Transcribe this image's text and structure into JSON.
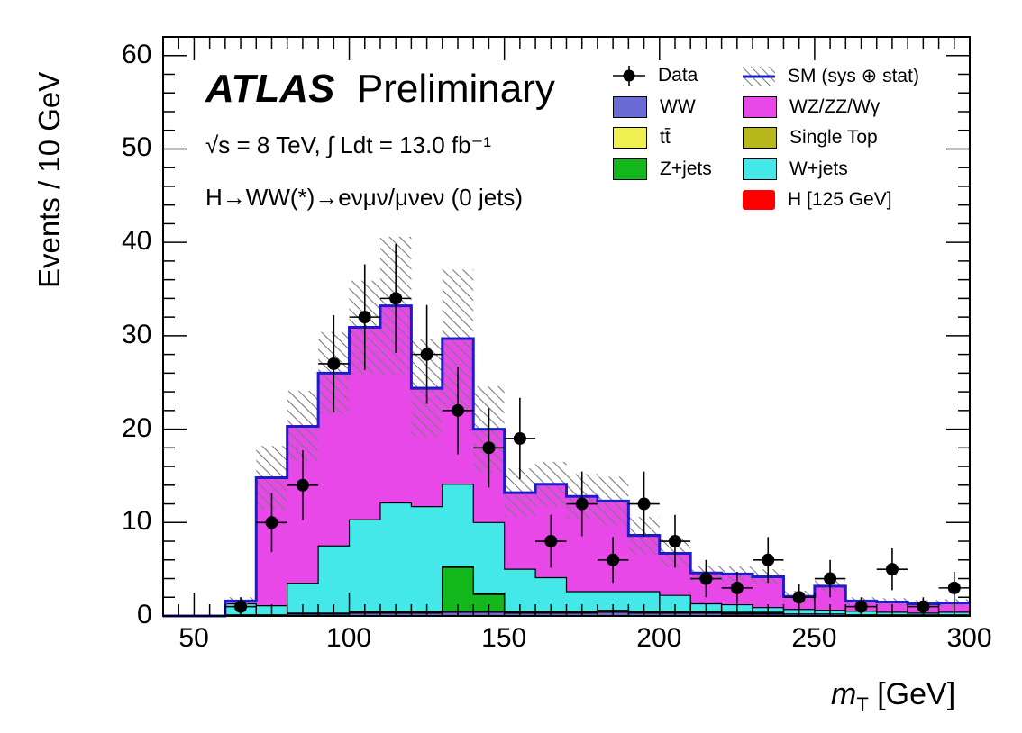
{
  "chart_data": {
    "type": "stacked-histogram",
    "title": "ATLAS Preliminary",
    "experiment": "ATLAS",
    "status": "Preliminary",
    "info_line1": "√s = 8 TeV, ∫ Ldt = 13.0 fb⁻¹",
    "info_line2": "H→WW(*)→eνμν/μνeν (0 jets)",
    "xlabel_var": "m",
    "xlabel_sub": "T",
    "xlabel_unit": "[GeV]",
    "ylabel": "Events / 10 GeV",
    "xlim": [
      40,
      300
    ],
    "ylim": [
      0,
      62
    ],
    "x_ticks": [
      50,
      100,
      150,
      200,
      250,
      300
    ],
    "y_ticks": [
      0,
      10,
      20,
      30,
      40,
      50,
      60
    ],
    "bin_edges": [
      40,
      50,
      60,
      70,
      80,
      90,
      100,
      110,
      120,
      130,
      140,
      150,
      160,
      170,
      180,
      190,
      200,
      210,
      220,
      230,
      240,
      250,
      260,
      270,
      280,
      290,
      300
    ],
    "series": [
      {
        "name": "WW",
        "color": "#6b6bd6",
        "values": [
          0,
          0,
          0.1,
          0.1,
          0.2,
          0.2,
          0.3,
          0.3,
          0.3,
          0.4,
          0.4,
          0.3,
          0.3,
          0.3,
          0.4,
          0.3,
          0.3,
          0.3,
          0.2,
          0.2,
          0.2,
          0.2,
          0.1,
          0.1,
          0.1,
          0.1
        ]
      },
      {
        "name": "tt̄",
        "color": "#f0f050",
        "values": [
          0,
          0,
          0,
          0,
          0,
          0,
          0.1,
          0.1,
          0.1,
          0.1,
          0.1,
          0.1,
          0.1,
          0.1,
          0.1,
          0.1,
          0.1,
          0.1,
          0.1,
          0.1,
          0,
          0,
          0,
          0,
          0,
          0
        ]
      },
      {
        "name": "Z+jets",
        "color": "#12b81c",
        "values": [
          0,
          0,
          0,
          0,
          0,
          0,
          0,
          0,
          0,
          4.7,
          1.8,
          0,
          0,
          0,
          0,
          0,
          0,
          0,
          0,
          0,
          0,
          0,
          0,
          0,
          0,
          0
        ]
      },
      {
        "name": "Single Top",
        "color": "#b8b81c",
        "values": [
          0,
          0,
          0,
          0,
          0.1,
          0.1,
          0.1,
          0.1,
          0.1,
          0.1,
          0.1,
          0.1,
          0.1,
          0.1,
          0.1,
          0.1,
          0.1,
          0.1,
          0.1,
          0.1,
          0,
          0,
          0,
          0,
          0,
          0
        ]
      },
      {
        "name": "W+jets",
        "color": "#44e8e8",
        "values": [
          0,
          0,
          1.2,
          1.0,
          3.2,
          7.2,
          9.8,
          11.6,
          11.2,
          8.8,
          7.6,
          4.5,
          3.6,
          2.1,
          2.0,
          2.1,
          1.7,
          0.8,
          0.8,
          0.5,
          0.5,
          0.4,
          0.4,
          0.3,
          0.2,
          0.3
        ]
      },
      {
        "name": "WZ/ZZ/Wγ",
        "color": "#e848e8",
        "values": [
          0,
          0,
          0.3,
          13.7,
          16.8,
          18.5,
          20.6,
          21.1,
          12.6,
          15.6,
          10.0,
          8.2,
          10.0,
          10.2,
          9.7,
          6.1,
          4.5,
          3.3,
          3.3,
          3.3,
          1.4,
          2.6,
          1.1,
          1.1,
          1.0,
          1.0
        ]
      },
      {
        "name": "H [125 GeV]",
        "color": "#ff0000",
        "values": [
          0,
          0,
          0,
          0,
          0,
          0,
          0,
          0,
          0,
          0,
          0,
          0,
          0,
          0,
          0,
          0,
          0,
          0,
          0,
          0,
          0,
          0,
          0,
          0,
          0,
          0
        ]
      }
    ],
    "sm_total": {
      "name": "SM (sys ⊕ stat)",
      "line_color": "#1c1ccc",
      "values": [
        0,
        0,
        1.6,
        14.8,
        20.3,
        26.0,
        30.9,
        33.2,
        24.4,
        29.7,
        20.0,
        13.2,
        14.1,
        12.8,
        12.3,
        8.6,
        6.7,
        4.6,
        4.5,
        4.2,
        2.1,
        3.2,
        1.6,
        1.5,
        1.3,
        1.4
      ],
      "band": [
        0,
        0,
        0.4,
        3.4,
        3.8,
        4.4,
        5.0,
        7.4,
        5.2,
        7.4,
        4.6,
        2.6,
        2.4,
        2.4,
        2.6,
        2.0,
        1.5,
        0.8,
        0.8,
        0.8,
        0.6,
        0.6,
        0.4,
        0.4,
        0.4,
        0.4
      ]
    },
    "data": {
      "name": "Data",
      "x": [
        65,
        75,
        85,
        95,
        105,
        115,
        125,
        135,
        145,
        155,
        165,
        175,
        185,
        195,
        205,
        215,
        225,
        235,
        245,
        255,
        265,
        275,
        285,
        295
      ],
      "y": [
        1,
        10,
        14,
        27,
        32,
        34,
        28,
        22,
        18,
        19,
        8,
        12,
        6,
        12,
        8,
        4,
        3,
        6,
        2,
        4,
        1,
        5,
        1,
        3
      ]
    },
    "legend_left": [
      "Data",
      "WW",
      "tt̄",
      "Z+jets"
    ],
    "legend_right": [
      "SM (sys ⊕ stat)",
      "WZ/ZZ/Wγ",
      "Single Top",
      "W+jets",
      "H [125 GeV]"
    ]
  }
}
